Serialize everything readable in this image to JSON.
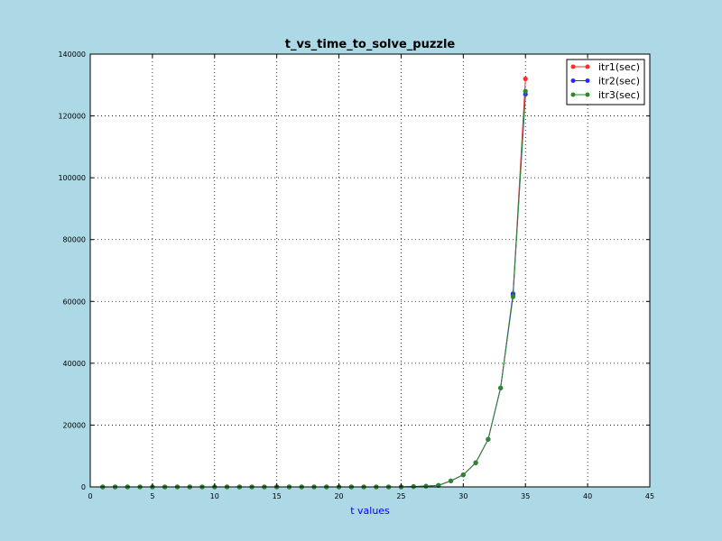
{
  "chart_data": {
    "type": "line",
    "title": "t_vs_time_to_solve_puzzle",
    "xlabel": "t values",
    "ylabel": "",
    "xlim": [
      0,
      45
    ],
    "ylim": [
      0,
      140000
    ],
    "xticks": [
      0,
      5,
      10,
      15,
      20,
      25,
      30,
      35,
      40,
      45
    ],
    "yticks": [
      0,
      20000,
      40000,
      60000,
      80000,
      100000,
      120000,
      140000
    ],
    "grid": true,
    "legend_position": "top-right",
    "x": [
      1,
      2,
      3,
      4,
      5,
      6,
      7,
      8,
      9,
      10,
      11,
      12,
      13,
      14,
      15,
      16,
      17,
      18,
      19,
      20,
      21,
      22,
      23,
      24,
      25,
      26,
      27,
      28,
      29,
      30,
      31,
      32,
      33,
      34,
      35
    ],
    "series": [
      {
        "name": "itr1(sec)",
        "color": "#ff2a2a",
        "values": [
          0,
          0,
          0,
          0,
          0,
          0,
          0,
          0,
          0,
          0,
          0,
          0,
          0,
          0,
          0,
          0,
          0,
          0,
          0,
          0,
          0,
          0,
          0,
          0,
          0,
          120,
          240,
          480,
          1950,
          3900,
          7800,
          15400,
          32000,
          62000,
          132000
        ]
      },
      {
        "name": "itr2(sec)",
        "color": "#2a2aff",
        "values": [
          0,
          0,
          0,
          0,
          0,
          0,
          0,
          0,
          0,
          0,
          0,
          0,
          0,
          0,
          0,
          0,
          0,
          0,
          0,
          0,
          0,
          0,
          0,
          0,
          0,
          120,
          240,
          480,
          1950,
          3900,
          7800,
          15400,
          32000,
          62500,
          127000
        ]
      },
      {
        "name": "itr3(sec)",
        "color": "#2a8a2a",
        "values": [
          0,
          0,
          0,
          0,
          0,
          0,
          0,
          0,
          0,
          0,
          0,
          0,
          0,
          0,
          0,
          0,
          0,
          0,
          0,
          0,
          0,
          0,
          0,
          0,
          0,
          120,
          240,
          480,
          1950,
          3900,
          7800,
          15400,
          32000,
          61500,
          128000
        ]
      }
    ],
    "colors": {
      "background": "#add8e6",
      "plot_area": "#ffffff",
      "xlabel": "#0000ff"
    }
  }
}
